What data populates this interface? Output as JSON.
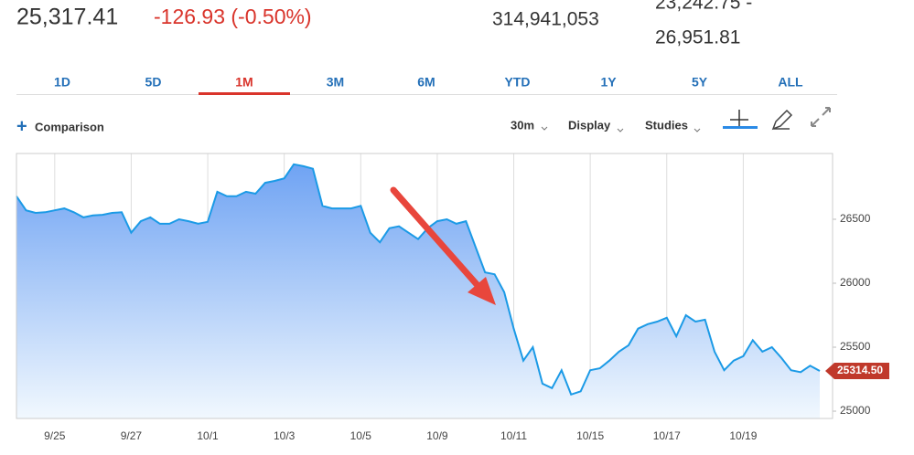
{
  "header": {
    "price": "25,317.41",
    "change": "-126.93 (-0.50%)",
    "volume": "314,941,053",
    "range_low": "23,242.75 -",
    "range_high": "26,951.81"
  },
  "tabs": [
    "1D",
    "5D",
    "1M",
    "3M",
    "6M",
    "YTD",
    "1Y",
    "5Y",
    "ALL"
  ],
  "active_tab": "1M",
  "toolbar": {
    "comparison": "Comparison",
    "interval": "30m",
    "display": "Display",
    "studies": "Studies"
  },
  "chart_data": {
    "type": "line",
    "categories": [
      null,
      null,
      null,
      null,
      "9/25",
      null,
      null,
      null,
      null,
      null,
      null,
      null,
      "9/27",
      null,
      null,
      null,
      null,
      null,
      null,
      null,
      "10/1",
      null,
      null,
      null,
      null,
      null,
      null,
      null,
      "10/3",
      null,
      null,
      null,
      null,
      null,
      null,
      null,
      "10/5",
      null,
      null,
      null,
      null,
      null,
      null,
      null,
      "10/9",
      null,
      null,
      null,
      null,
      null,
      null,
      null,
      "10/11",
      null,
      null,
      null,
      null,
      null,
      null,
      null,
      "10/15",
      null,
      null,
      null,
      null,
      null,
      null,
      null,
      "10/17",
      null,
      null,
      null,
      null,
      null,
      null,
      null,
      "10/19",
      null,
      null,
      null,
      null,
      null,
      null,
      null,
      null
    ],
    "series": [
      {
        "color": "#1b9ae6",
        "values": [
          26680,
          26570,
          26550,
          26555,
          26570,
          26585,
          26555,
          26515,
          26530,
          26535,
          26550,
          26555,
          26395,
          26485,
          26515,
          26465,
          26465,
          26500,
          26485,
          26465,
          26480,
          26715,
          26680,
          26680,
          26715,
          26700,
          26785,
          26800,
          26820,
          26930,
          26915,
          26895,
          26605,
          26585,
          26585,
          26585,
          26605,
          26395,
          26320,
          26430,
          26445,
          26395,
          26345,
          26430,
          26485,
          26500,
          26465,
          26485,
          26285,
          26085,
          26070,
          25930,
          25645,
          25395,
          25500,
          25215,
          25180,
          25320,
          25130,
          25155,
          25320,
          25335,
          25395,
          25465,
          25515,
          25645,
          25680,
          25700,
          25730,
          25585,
          25750,
          25700,
          25715,
          25465,
          25320,
          25395,
          25430,
          25555,
          25465,
          25500,
          25415,
          25320,
          25305,
          25355,
          25314.5
        ]
      }
    ],
    "last_price": {
      "value": 25314.5,
      "label": "25314.50",
      "color": "#c0392b"
    },
    "ylim": [
      24943,
      27014
    ],
    "yticks": [
      25000,
      25500,
      26000,
      26500
    ],
    "grid": "x",
    "area": true
  }
}
